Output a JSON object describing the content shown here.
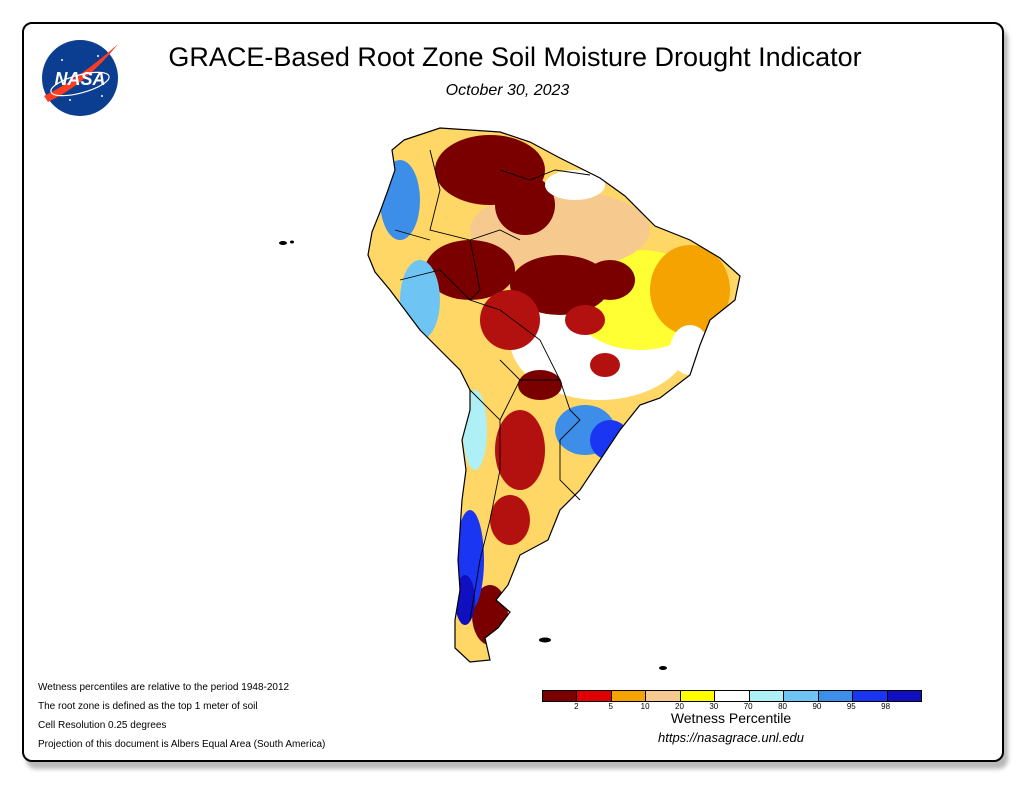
{
  "title": "GRACE-Based Root Zone Soil Moisture Drought Indicator",
  "date": "October 30, 2023",
  "logo_text": "NASA",
  "notes": [
    "Wetness percentiles are relative to the period 1948-2012",
    "The root zone is defined as the top 1 meter of soil",
    "Cell Resolution 0.25 degrees",
    "Projection of this document is Albers Equal Area (South America)"
  ],
  "legend": {
    "title": "Wetness Percentile",
    "colors": [
      "#7a0000",
      "#e00000",
      "#f5a300",
      "#f6c98f",
      "#ffff00",
      "#ffffff",
      "#aef0f5",
      "#6ec4f2",
      "#3c8ee8",
      "#1a36f2",
      "#1010c0"
    ],
    "tick_labels": [
      "2",
      "5",
      "10",
      "20",
      "30",
      "70",
      "80",
      "90",
      "95",
      "98"
    ]
  },
  "url": "https://nasagrace.unl.edu"
}
